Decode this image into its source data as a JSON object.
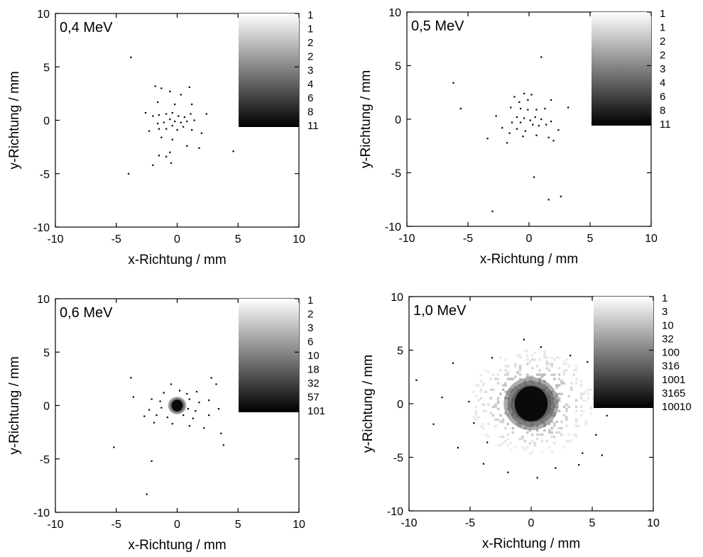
{
  "chart_data": [
    {
      "type": "heatmap",
      "title": "0,4 MeV",
      "xlabel": "x-Richtung / mm",
      "ylabel": "y-Richtung / mm",
      "xlim": [
        -10,
        10
      ],
      "ylim": [
        -10,
        10
      ],
      "xticks": [
        "-10",
        "-5",
        "0",
        "5",
        "10"
      ],
      "yticks": [
        "-10",
        "-5",
        "0",
        "5",
        "10"
      ],
      "colorbar_labels": [
        "1",
        "1",
        "2",
        "2",
        "3",
        "4",
        "6",
        "8",
        "11"
      ],
      "colorscale": "log",
      "points": [
        [
          -3.8,
          5.9
        ],
        [
          -1.8,
          3.2
        ],
        [
          -1.3,
          3.0
        ],
        [
          1.0,
          3.1
        ],
        [
          -0.6,
          2.7
        ],
        [
          0.3,
          2.4
        ],
        [
          1.2,
          1.5
        ],
        [
          -1.6,
          1.7
        ],
        [
          -0.2,
          1.5
        ],
        [
          -2.6,
          0.7
        ],
        [
          -2.0,
          0.4
        ],
        [
          -1.5,
          0.5
        ],
        [
          -0.9,
          0.6
        ],
        [
          -0.4,
          0.7
        ],
        [
          0.1,
          0.4
        ],
        [
          0.6,
          0.3
        ],
        [
          1.1,
          0.6
        ],
        [
          2.4,
          0.6
        ],
        [
          -1.6,
          -0.3
        ],
        [
          -1.1,
          -0.2
        ],
        [
          -0.6,
          0.1
        ],
        [
          -0.2,
          -0.1
        ],
        [
          0.3,
          -0.2
        ],
        [
          0.8,
          -0.1
        ],
        [
          1.4,
          0.0
        ],
        [
          -2.3,
          -1.0
        ],
        [
          -1.5,
          -0.8
        ],
        [
          -0.9,
          -0.8
        ],
        [
          -0.4,
          -0.5
        ],
        [
          0.0,
          -0.9
        ],
        [
          0.5,
          -0.6
        ],
        [
          1.2,
          -0.9
        ],
        [
          2.0,
          -1.2
        ],
        [
          -1.3,
          -1.6
        ],
        [
          -0.4,
          -1.8
        ],
        [
          0.8,
          -2.4
        ],
        [
          1.8,
          -2.6
        ],
        [
          -0.6,
          -3.0
        ],
        [
          -1.5,
          -3.3
        ],
        [
          -0.9,
          -3.4
        ],
        [
          -2.0,
          -4.2
        ],
        [
          -0.5,
          -4.0
        ],
        [
          4.6,
          -2.9
        ],
        [
          -4.0,
          -5.0
        ]
      ]
    },
    {
      "type": "heatmap",
      "title": "0,5 MeV",
      "xlabel": "x-Richtung / mm",
      "ylabel": "y-Richtung / mm",
      "xlim": [
        -10,
        10
      ],
      "ylim": [
        -10,
        10
      ],
      "xticks": [
        "-10",
        "-5",
        "0",
        "5",
        "10"
      ],
      "yticks": [
        "-10",
        "-5",
        "0",
        "5",
        "10"
      ],
      "colorbar_labels": [
        "1",
        "1",
        "2",
        "2",
        "3",
        "4",
        "6",
        "8",
        "11"
      ],
      "colorscale": "log",
      "points": [
        [
          1.0,
          5.8
        ],
        [
          -6.2,
          3.4
        ],
        [
          -0.4,
          2.4
        ],
        [
          0.2,
          2.3
        ],
        [
          -1.2,
          2.1
        ],
        [
          -0.1,
          1.8
        ],
        [
          -0.8,
          1.6
        ],
        [
          1.8,
          1.8
        ],
        [
          -1.5,
          1.1
        ],
        [
          -0.7,
          1.0
        ],
        [
          -0.1,
          0.9
        ],
        [
          0.6,
          0.9
        ],
        [
          1.3,
          1.0
        ],
        [
          3.2,
          1.1
        ],
        [
          -5.6,
          1.0
        ],
        [
          -2.7,
          0.3
        ],
        [
          -1.0,
          0.2
        ],
        [
          -0.4,
          0.1
        ],
        [
          0.1,
          -0.1
        ],
        [
          0.5,
          0.2
        ],
        [
          1.0,
          0.0
        ],
        [
          1.8,
          -0.2
        ],
        [
          -1.4,
          -0.3
        ],
        [
          -0.7,
          -0.3
        ],
        [
          0.3,
          -0.5
        ],
        [
          0.8,
          -0.6
        ],
        [
          1.4,
          -0.5
        ],
        [
          -2.2,
          -0.8
        ],
        [
          -1.0,
          -0.9
        ],
        [
          -0.3,
          -1.1
        ],
        [
          2.4,
          -1.0
        ],
        [
          -3.4,
          -1.8
        ],
        [
          -1.6,
          -1.3
        ],
        [
          -0.5,
          -1.6
        ],
        [
          0.6,
          -1.5
        ],
        [
          1.6,
          -1.7
        ],
        [
          -1.8,
          -2.2
        ],
        [
          2.0,
          -2.0
        ],
        [
          0.4,
          -5.4
        ],
        [
          -3.0,
          -8.6
        ],
        [
          1.6,
          -7.5
        ],
        [
          2.6,
          -7.2
        ]
      ]
    },
    {
      "type": "heatmap",
      "title": "0,6 MeV",
      "xlabel": "x-Richtung / mm",
      "ylabel": "y-Richtung / mm",
      "xlim": [
        -10,
        10
      ],
      "ylim": [
        -10,
        10
      ],
      "xticks": [
        "-10",
        "-5",
        "0",
        "5",
        "10"
      ],
      "yticks": [
        "-10",
        "-5",
        "0",
        "5",
        "10"
      ],
      "colorbar_labels": [
        "1",
        "2",
        "3",
        "6",
        "10",
        "18",
        "32",
        "57",
        "101"
      ],
      "colorscale": "log",
      "points": [
        [
          -3.8,
          2.6
        ],
        [
          -0.5,
          2.0
        ],
        [
          0.2,
          1.4
        ],
        [
          -1.1,
          1.2
        ],
        [
          0.8,
          1.1
        ],
        [
          1.6,
          1.3
        ],
        [
          2.8,
          2.6
        ],
        [
          3.2,
          2.0
        ],
        [
          -3.6,
          0.8
        ],
        [
          -2.1,
          0.6
        ],
        [
          -1.4,
          0.4
        ],
        [
          1.0,
          0.6
        ],
        [
          1.8,
          0.3
        ],
        [
          2.6,
          0.5
        ],
        [
          -2.3,
          -0.4
        ],
        [
          -1.3,
          -0.2
        ],
        [
          0.9,
          -0.3
        ],
        [
          1.5,
          -0.5
        ],
        [
          3.4,
          -0.3
        ],
        [
          -2.7,
          -1.0
        ],
        [
          -1.7,
          -0.9
        ],
        [
          -0.8,
          -1.1
        ],
        [
          0.5,
          -0.9
        ],
        [
          1.3,
          -1.2
        ],
        [
          2.6,
          -0.9
        ],
        [
          -1.9,
          -1.6
        ],
        [
          -0.4,
          -1.7
        ],
        [
          1.0,
          -1.9
        ],
        [
          2.2,
          -2.1
        ],
        [
          3.6,
          -2.6
        ],
        [
          -5.2,
          -3.9
        ],
        [
          -2.1,
          -5.2
        ],
        [
          -2.5,
          -8.3
        ],
        [
          3.8,
          -3.7
        ]
      ],
      "core": {
        "x": 0,
        "y": 0,
        "radius": 0.6
      }
    },
    {
      "type": "heatmap",
      "title": "1,0 MeV",
      "xlabel": "x-Richtung / mm",
      "ylabel": "y-Richtung / mm",
      "xlim": [
        -10,
        10
      ],
      "ylim": [
        -10,
        10
      ],
      "xticks": [
        "-10",
        "-5",
        "0",
        "5",
        "10"
      ],
      "yticks": [
        "-10",
        "-5",
        "0",
        "5",
        "10"
      ],
      "colorbar_labels": [
        "1",
        "3",
        "10",
        "32",
        "100",
        "316",
        "1001",
        "3165",
        "10010"
      ],
      "colorscale": "log",
      "core": {
        "x": 0,
        "y": 0,
        "radius": 1.8
      },
      "halo_radius": 5.0,
      "points": [
        [
          -9.4,
          2.2
        ],
        [
          -6.4,
          3.8
        ],
        [
          -3.2,
          4.3
        ],
        [
          -0.6,
          6.0
        ],
        [
          0.8,
          5.3
        ],
        [
          3.2,
          4.5
        ],
        [
          4.6,
          3.9
        ],
        [
          -7.3,
          0.6
        ],
        [
          -5.1,
          0.2
        ],
        [
          -4.7,
          -1.8
        ],
        [
          -3.6,
          -3.6
        ],
        [
          -3.9,
          -5.6
        ],
        [
          -1.9,
          -6.4
        ],
        [
          0.5,
          -6.9
        ],
        [
          2.0,
          -6.0
        ],
        [
          3.9,
          -5.7
        ],
        [
          5.8,
          -4.8
        ],
        [
          5.3,
          -2.9
        ],
        [
          6.2,
          -1.1
        ],
        [
          5.6,
          1.7
        ],
        [
          4.2,
          -4.6
        ],
        [
          -6.0,
          -4.1
        ],
        [
          -8.0,
          -1.9
        ]
      ]
    }
  ]
}
